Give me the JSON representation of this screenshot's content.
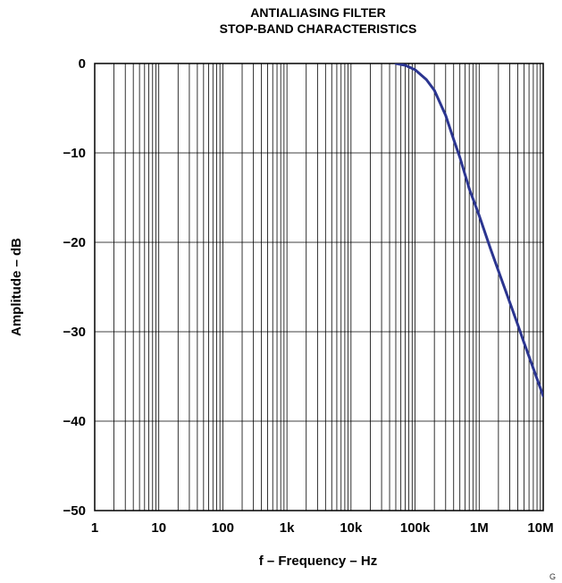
{
  "chart_data": {
    "type": "line",
    "title": "ANTIALIASING FILTER",
    "subtitle": "STOP-BAND CHARACTERISTICS",
    "xlabel": "f – Frequency – Hz",
    "ylabel": "Amplitude – dB",
    "x_scale": "log",
    "xlim": [
      1,
      10000000
    ],
    "ylim": [
      -50,
      0
    ],
    "x_ticks": [
      1,
      10,
      100,
      1000,
      10000,
      100000,
      1000000,
      10000000
    ],
    "x_tick_labels": [
      "1",
      "10",
      "100",
      "1k",
      "10k",
      "100k",
      "1M",
      "10M"
    ],
    "y_ticks": [
      0,
      -10,
      -20,
      -30,
      -40,
      -50
    ],
    "y_tick_labels": [
      "0",
      "−10",
      "−20",
      "−30",
      "−40",
      "−50"
    ],
    "grid": true,
    "footnote": "G",
    "series_color": "#2b3590",
    "series": [
      {
        "x": [
          50000,
          70000,
          100000,
          150000,
          200000,
          300000,
          400000,
          500000,
          700000,
          1000000,
          1500000,
          2000000,
          3000000,
          4000000,
          5000000,
          7000000,
          10000000
        ],
        "y": [
          0,
          -0.2,
          -0.7,
          -1.8,
          -3.0,
          -5.8,
          -8.5,
          -10.5,
          -14.0,
          -17.0,
          -20.7,
          -23.2,
          -26.7,
          -29.2,
          -31.2,
          -34.1,
          -37.2
        ]
      }
    ]
  }
}
